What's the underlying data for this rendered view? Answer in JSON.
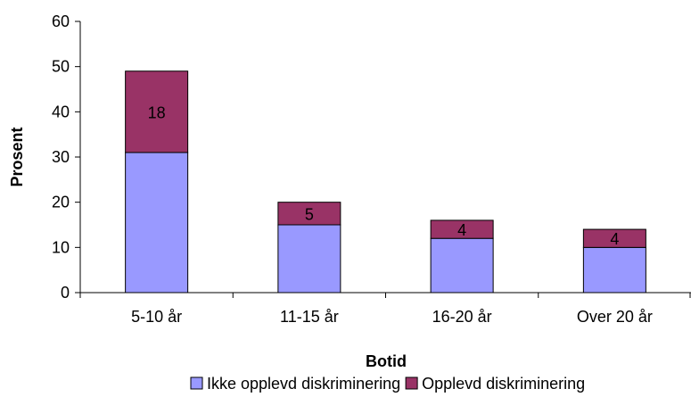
{
  "chart_data": {
    "type": "bar",
    "stacked": true,
    "title": "",
    "xlabel": "Botid",
    "ylabel": "Prosent",
    "ylim": [
      0,
      60
    ],
    "yticks": [
      0,
      10,
      20,
      30,
      40,
      50,
      60
    ],
    "categories": [
      "5-10 år",
      "11-15 år",
      "16-20 år",
      "Over 20 år"
    ],
    "series": [
      {
        "name": "Ikke opplevd diskriminering",
        "color": "#9999ff",
        "values": [
          31,
          15,
          12,
          10
        ],
        "show_labels": false
      },
      {
        "name": "Opplevd diskriminering",
        "color": "#993366",
        "values": [
          18,
          5,
          4,
          4
        ],
        "show_labels": true
      }
    ],
    "grid": false,
    "legend": "bottom"
  }
}
